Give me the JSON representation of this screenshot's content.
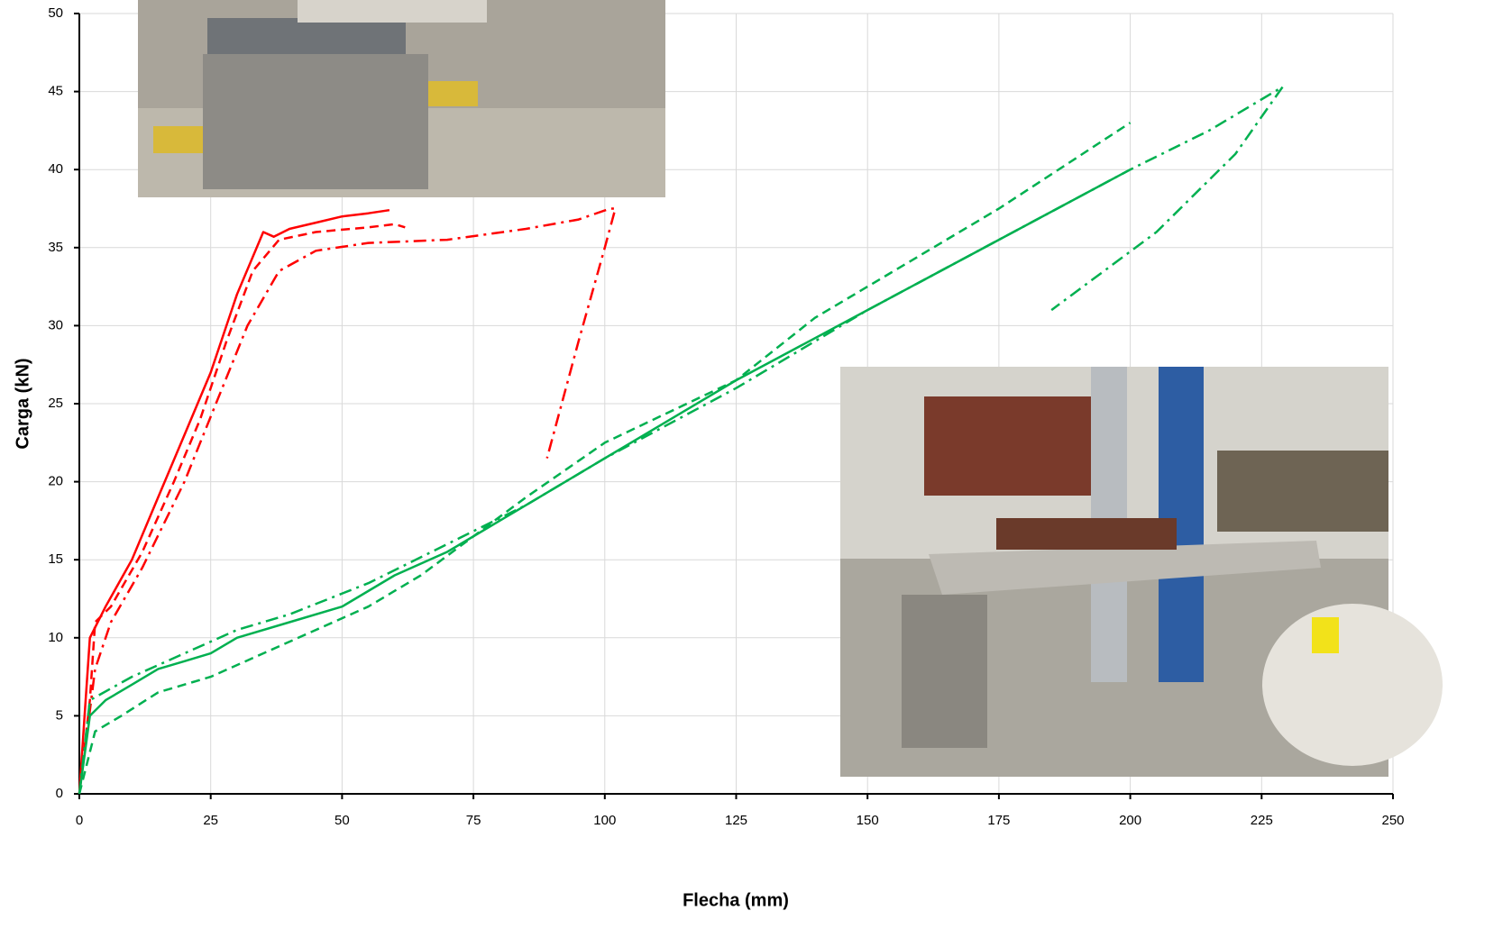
{
  "chart_data": {
    "type": "line",
    "x_label": "Flecha (mm)",
    "y_label": "Carga (kN)",
    "xlim": [
      0,
      250
    ],
    "xticks": [
      0,
      25,
      50,
      75,
      100,
      125,
      150,
      175,
      200,
      225,
      250
    ],
    "ylim": [
      0,
      50
    ],
    "yticks": [
      0,
      5,
      10,
      15,
      20,
      25,
      30,
      35,
      40,
      45,
      50
    ],
    "grid": true,
    "series": [
      {
        "color": "#ff0000",
        "style": "solid",
        "x": [
          0,
          1,
          2,
          5,
          10,
          15,
          20,
          25,
          30,
          35,
          37,
          40,
          45,
          50,
          55,
          59
        ],
        "values": [
          0,
          5,
          10,
          12,
          15,
          19,
          23,
          27,
          32,
          36,
          35.7,
          36.2,
          36.6,
          37,
          37.2,
          37.4
        ]
      },
      {
        "color": "#ff0000",
        "style": "dashed",
        "x": [
          0,
          2,
          3,
          6,
          12,
          18,
          23,
          28,
          33,
          38,
          45,
          55,
          60,
          62
        ],
        "values": [
          0,
          6,
          11,
          12,
          15.5,
          20,
          24,
          29,
          33.5,
          35.5,
          36,
          36.3,
          36.5,
          36.3
        ]
      },
      {
        "color": "#ff0000",
        "style": "dash-dot",
        "x": [
          0,
          3,
          6,
          12,
          20,
          26,
          32,
          38,
          45,
          55,
          70,
          85,
          95,
          101,
          102,
          100,
          95,
          89
        ],
        "values": [
          0,
          8,
          11,
          14.5,
          20,
          25,
          30,
          33.5,
          34.8,
          35.3,
          35.5,
          36.2,
          36.8,
          37.5,
          37.5,
          35,
          29,
          21.5
        ]
      },
      {
        "color": "#00b050",
        "style": "solid",
        "x": [
          0,
          2,
          5,
          10,
          15,
          20,
          25,
          30,
          40,
          50,
          60,
          70,
          80,
          90,
          100,
          125,
          150,
          175,
          200
        ],
        "values": [
          0,
          5,
          6,
          7,
          8,
          8.5,
          9,
          10,
          11,
          12,
          14,
          15.5,
          17.5,
          19.5,
          21.5,
          26.5,
          31,
          35.5,
          40
        ]
      },
      {
        "color": "#00b050",
        "style": "dashed",
        "x": [
          0,
          3,
          8,
          15,
          25,
          35,
          45,
          55,
          65,
          75,
          85,
          100,
          125,
          140,
          150,
          175,
          200
        ],
        "values": [
          0,
          4,
          5,
          6.5,
          7.5,
          9,
          10.5,
          12,
          14,
          16.5,
          19,
          22.5,
          26.5,
          30.5,
          32.5,
          37.5,
          43
        ]
      },
      {
        "color": "#00b050",
        "style": "dash-dot",
        "x": [
          0,
          2,
          10,
          20,
          30,
          40,
          55,
          70,
          85,
          100,
          125,
          150,
          175,
          200,
          215,
          229,
          220,
          205,
          185
        ],
        "values": [
          0,
          6,
          7.5,
          9,
          10.5,
          11.5,
          13.5,
          16,
          18.5,
          21.5,
          26,
          31,
          35.5,
          40,
          42.5,
          45.3,
          41,
          36,
          31
        ]
      }
    ]
  }
}
